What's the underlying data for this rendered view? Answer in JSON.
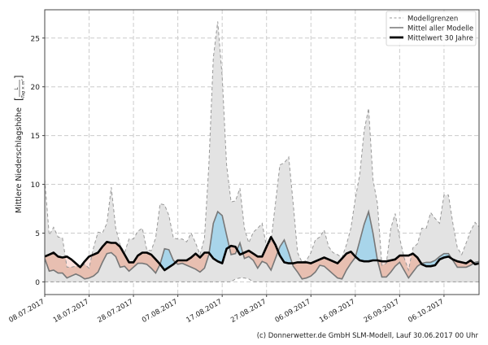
{
  "chart_data": {
    "type": "area",
    "title": "",
    "xlabel": "",
    "ylabel": "Mittlere Niederschlagshöhe",
    "ylabel_unit": {
      "numerator": "L",
      "denominator": "Tag × m²"
    },
    "xlim": [
      "08.07.2017",
      "14.10.2017"
    ],
    "ylim": [
      -1.3,
      27.9
    ],
    "grid": true,
    "legend_placement": "top-right",
    "yticks": [
      0,
      5,
      10,
      15,
      20,
      25
    ],
    "xticks": [
      "08.07.2017",
      "18.07.2017",
      "28.07.2017",
      "07.08.2017",
      "17.08.2017",
      "27.08.2017",
      "06.09.2017",
      "16.09.2017",
      "26.09.2017",
      "06.10.2017"
    ],
    "colors": {
      "band": "#e3e3e3",
      "band_edge": "#999999",
      "model_mean": "#777777",
      "climate_mean": "#000000",
      "above_climate": "#a8d5ea",
      "below_climate": "#e8bfb1",
      "upper_below_climate": "#fde2dd"
    },
    "x": [
      "08.07.2017",
      "09.07.2017",
      "10.07.2017",
      "11.07.2017",
      "12.07.2017",
      "13.07.2017",
      "14.07.2017",
      "15.07.2017",
      "16.07.2017",
      "17.07.2017",
      "18.07.2017",
      "19.07.2017",
      "20.07.2017",
      "21.07.2017",
      "22.07.2017",
      "23.07.2017",
      "24.07.2017",
      "25.07.2017",
      "26.07.2017",
      "27.07.2017",
      "28.07.2017",
      "29.07.2017",
      "30.07.2017",
      "31.07.2017",
      "01.08.2017",
      "02.08.2017",
      "03.08.2017",
      "04.08.2017",
      "05.08.2017",
      "06.08.2017",
      "07.08.2017",
      "08.08.2017",
      "09.08.2017",
      "10.08.2017",
      "11.08.2017",
      "12.08.2017",
      "13.08.2017",
      "14.08.2017",
      "15.08.2017",
      "16.08.2017",
      "17.08.2017",
      "18.08.2017",
      "19.08.2017",
      "20.08.2017",
      "21.08.2017",
      "22.08.2017",
      "23.08.2017",
      "24.08.2017",
      "25.08.2017",
      "26.08.2017",
      "27.08.2017",
      "28.08.2017",
      "29.08.2017",
      "30.08.2017",
      "31.08.2017",
      "01.09.2017",
      "02.09.2017",
      "03.09.2017",
      "04.09.2017",
      "05.09.2017",
      "06.09.2017",
      "07.09.2017",
      "08.09.2017",
      "09.09.2017",
      "10.09.2017",
      "11.09.2017",
      "12.09.2017",
      "13.09.2017",
      "14.09.2017",
      "15.09.2017",
      "16.09.2017",
      "17.09.2017",
      "18.09.2017",
      "19.09.2017",
      "20.09.2017",
      "21.09.2017",
      "22.09.2017",
      "23.09.2017",
      "24.09.2017",
      "25.09.2017",
      "26.09.2017",
      "27.09.2017",
      "28.09.2017",
      "29.09.2017",
      "30.09.2017",
      "01.10.2017",
      "02.10.2017",
      "03.10.2017",
      "04.10.2017",
      "05.10.2017",
      "06.10.2017",
      "07.10.2017",
      "08.10.2017",
      "09.10.2017",
      "10.10.2017",
      "11.10.2017",
      "12.10.2017",
      "13.10.2017",
      "14.10.2017",
      "15.10.2017"
    ],
    "series": [
      {
        "name": "Modellgrenzen",
        "role": "upper",
        "values": [
          10.5,
          4.8,
          5.6,
          4.6,
          4.5,
          1.5,
          1.5,
          1.6,
          1.5,
          1.8,
          1.4,
          3.5,
          5.1,
          5.0,
          6.0,
          9.7,
          5.5,
          3.8,
          3.0,
          4.4,
          4.4,
          5.2,
          5.5,
          3.3,
          3.2,
          4.5,
          8.0,
          7.9,
          6.8,
          4.5,
          4.4,
          4.4,
          4.1,
          5.0,
          4.0,
          2.8,
          4.5,
          12,
          23,
          26.7,
          21,
          12,
          8.2,
          8.3,
          9.6,
          5.5,
          4.0,
          5.1,
          5.5,
          6.0,
          3.6,
          4.2,
          8,
          12.0,
          12.2,
          12.8,
          8,
          3,
          2.0,
          2.2,
          3.0,
          4.3,
          4.6,
          5.3,
          3.6,
          3.0,
          2.8,
          2.5,
          3.8,
          5.5,
          8.5,
          11,
          15.5,
          17.8,
          10.5,
          8.0,
          1.7,
          1.9,
          5.5,
          7.0,
          4.5,
          2.5,
          1.2,
          3.5,
          3.9,
          5.5,
          5.5,
          7.1,
          6.5,
          6.0,
          8.9,
          8.9,
          6,
          3.5,
          2.8,
          4.0,
          5.2,
          6.1,
          5.6,
          3.0
        ]
      },
      {
        "name": "Modellgrenzen",
        "role": "lower",
        "values": [
          0,
          0,
          0,
          0,
          0,
          0,
          0,
          0,
          0,
          0,
          0,
          0,
          0,
          0,
          0,
          0,
          0,
          0,
          0,
          0,
          0,
          0,
          0,
          0,
          0,
          0,
          0,
          0,
          0,
          0,
          0,
          0,
          0,
          0,
          0,
          0,
          0,
          0,
          0,
          0,
          0,
          0,
          0,
          0.3,
          0.4,
          0.4,
          0.3,
          0,
          0,
          0,
          0,
          0,
          0,
          0,
          0,
          0,
          0,
          0,
          0,
          0,
          0,
          0,
          0,
          0,
          0,
          0,
          0,
          0,
          0,
          0,
          0,
          0,
          0,
          0,
          0,
          0,
          0,
          0,
          0,
          0,
          0,
          0,
          0,
          0,
          0,
          0,
          0,
          0,
          0,
          0,
          0,
          0,
          0,
          0,
          0,
          0,
          0,
          0,
          0,
          0
        ]
      },
      {
        "name": "Mittel aller Modelle",
        "role": "mean",
        "values": [
          2.4,
          1.1,
          1.2,
          0.9,
          0.9,
          0.4,
          0.6,
          0.8,
          0.6,
          0.3,
          0.4,
          0.6,
          1.0,
          2.0,
          2.9,
          3.0,
          2.6,
          1.5,
          1.6,
          1.1,
          1.5,
          1.9,
          1.9,
          1.8,
          1.4,
          0.9,
          1.8,
          3.4,
          3.3,
          2.2,
          1.8,
          1.9,
          1.7,
          1.5,
          1.3,
          1.0,
          1.4,
          2.8,
          6.0,
          7.2,
          6.8,
          4.8,
          2.8,
          2.9,
          4.0,
          2.4,
          2.6,
          2.2,
          1.4,
          2.1,
          1.9,
          1.2,
          2.4,
          3.6,
          4.3,
          3.0,
          1.6,
          1.0,
          0.3,
          0.4,
          0.6,
          1.0,
          1.7,
          1.6,
          1.2,
          0.8,
          0.4,
          0.3,
          1.2,
          1.9,
          2.5,
          4.2,
          5.9,
          7.2,
          5.0,
          2.2,
          0.5,
          0.5,
          1.0,
          1.6,
          2.0,
          1.2,
          0.4,
          1.0,
          1.6,
          1.9,
          2.0,
          2.0,
          2.2,
          2.6,
          2.9,
          2.9,
          2.2,
          1.5,
          1.5,
          1.5,
          1.7,
          2.0,
          2.1,
          2.0
        ]
      },
      {
        "name": "Mittelwert 30 Jahre",
        "role": "climate",
        "values": [
          2.6,
          2.8,
          3.0,
          2.6,
          2.5,
          2.6,
          2.3,
          1.9,
          1.5,
          2.1,
          2.6,
          2.8,
          3.0,
          3.6,
          4.1,
          4.0,
          4.0,
          3.6,
          2.8,
          2.0,
          2.0,
          2.7,
          3.0,
          3.0,
          2.8,
          2.3,
          1.8,
          1.2,
          1.5,
          1.8,
          2.2,
          2.2,
          2.2,
          2.5,
          2.9,
          2.5,
          3.0,
          3.0,
          2.4,
          2.1,
          1.9,
          3.4,
          3.7,
          3.6,
          2.8,
          3.0,
          3.2,
          2.9,
          2.6,
          2.6,
          3.6,
          4.6,
          3.8,
          2.7,
          2.0,
          1.9,
          1.9,
          2.0,
          2.0,
          2.0,
          1.9,
          2.1,
          2.3,
          2.5,
          2.3,
          2.1,
          1.9,
          2.4,
          2.9,
          3.1,
          2.6,
          2.2,
          2.1,
          2.1,
          2.2,
          2.2,
          2.1,
          2.1,
          2.2,
          2.3,
          2.7,
          2.7,
          2.7,
          2.9,
          2.5,
          1.8,
          1.6,
          1.6,
          1.7,
          2.3,
          2.5,
          2.6,
          2.3,
          2.1,
          2.0,
          1.9,
          2.2,
          1.8,
          1.9,
          1.4
        ]
      }
    ],
    "legend": [
      "Modellgrenzen",
      "Mittel aller Modelle",
      "Mittelwert 30 Jahre"
    ]
  },
  "footer": "(c) Donnerwetter.de GmbH SLM-Modell, Lauf 30.06.2017 00 Uhr"
}
